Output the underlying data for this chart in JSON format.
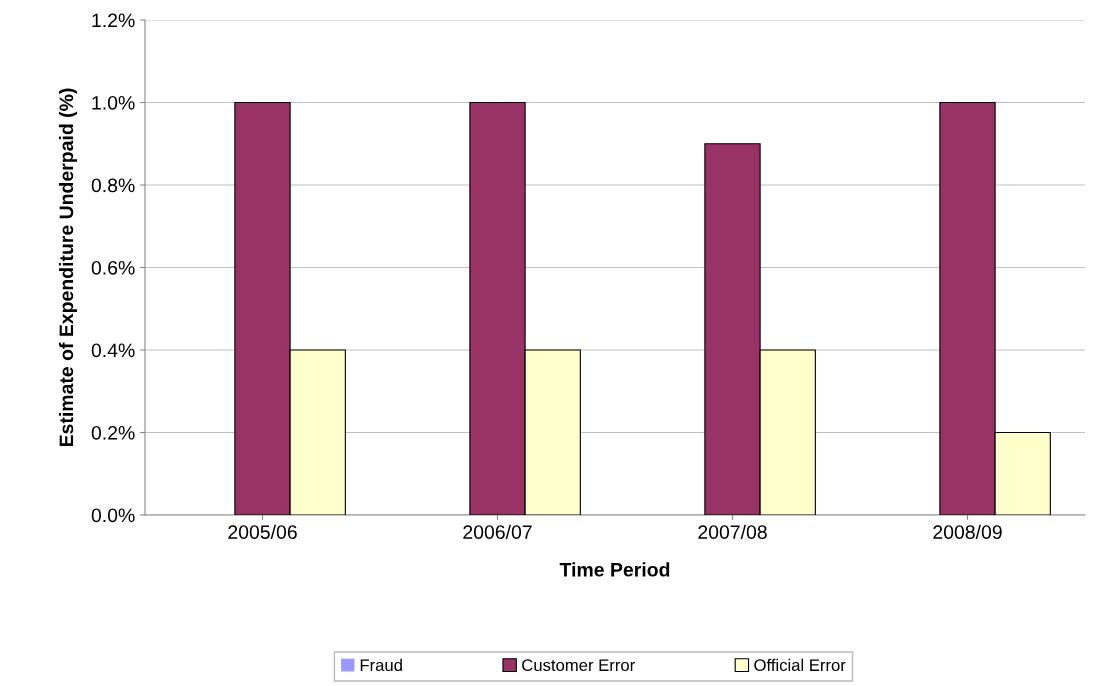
{
  "chart_data": {
    "type": "bar",
    "xlabel": "Time Period",
    "ylabel": "Estimate of Expenditure Underpaid (%)",
    "categories": [
      "2005/06",
      "2006/07",
      "2007/08",
      "2008/09"
    ],
    "series": [
      {
        "name": "Fraud",
        "color": "#9999ff",
        "values": [
          0.0,
          0.0,
          0.0,
          0.0
        ]
      },
      {
        "name": "Customer Error",
        "color": "#993366",
        "values": [
          1.0,
          1.0,
          0.9,
          1.0
        ]
      },
      {
        "name": "Official Error",
        "color": "#ffffcc",
        "values": [
          0.4,
          0.4,
          0.4,
          0.2
        ]
      }
    ],
    "ylim": [
      0,
      1.2
    ],
    "yticks": [
      {
        "value": 0,
        "label": "0.0%"
      },
      {
        "value": 0.2,
        "label": "0.2%"
      },
      {
        "value": 0.4,
        "label": "0.4%"
      },
      {
        "value": 0.6,
        "label": "0.6%"
      },
      {
        "value": 0.8,
        "label": "0.8%"
      },
      {
        "value": 1.0,
        "label": "1.0%"
      },
      {
        "value": 1.2,
        "label": "1.2%"
      }
    ],
    "grid": "y",
    "legend": "bottom"
  }
}
